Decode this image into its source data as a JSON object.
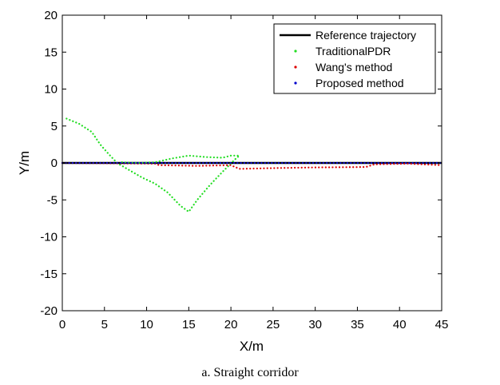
{
  "caption": "a. Straight corridor",
  "chart_data": {
    "type": "line",
    "title": "",
    "xlabel": "X/m",
    "ylabel": "Y/m",
    "xlim": [
      0,
      45
    ],
    "ylim": [
      -20,
      20
    ],
    "xticks": [
      0,
      5,
      10,
      15,
      20,
      25,
      30,
      35,
      40,
      45
    ],
    "yticks": [
      -20,
      -15,
      -10,
      -5,
      0,
      5,
      10,
      15,
      20
    ],
    "grid": false,
    "legend_position": "top-right",
    "series": [
      {
        "name": "Reference trajectory",
        "style": "solid",
        "color": "#000000",
        "points": [
          [
            0,
            0
          ],
          [
            45,
            0
          ]
        ]
      },
      {
        "name": "TraditionalPDR",
        "style": "dotted",
        "color": "#22dd22",
        "points": [
          [
            0.5,
            6
          ],
          [
            2,
            5.3
          ],
          [
            3.5,
            4.2
          ],
          [
            4.5,
            2.5
          ],
          [
            5.5,
            1.2
          ],
          [
            6.5,
            0
          ],
          [
            8,
            -1
          ],
          [
            9.5,
            -2
          ],
          [
            11,
            -2.8
          ],
          [
            12.5,
            -4
          ],
          [
            14,
            -5.8
          ],
          [
            15,
            -6.6
          ],
          [
            16,
            -5
          ],
          [
            17.5,
            -3
          ],
          [
            19,
            -1.2
          ],
          [
            20.5,
            0.5
          ],
          [
            21,
            1
          ],
          [
            20,
            1
          ],
          [
            19,
            0.7
          ],
          [
            17,
            0.8
          ],
          [
            15,
            1
          ],
          [
            13,
            0.6
          ],
          [
            11,
            0.1
          ],
          [
            9,
            0
          ],
          [
            7,
            0.1
          ]
        ]
      },
      {
        "name": "Wang's method",
        "style": "dotted",
        "color": "#dd0000",
        "points": [
          [
            0,
            0
          ],
          [
            11,
            -0.1
          ],
          [
            11.5,
            -0.3
          ],
          [
            16,
            -0.4
          ],
          [
            20,
            -0.3
          ],
          [
            21,
            -0.8
          ],
          [
            25,
            -0.7
          ],
          [
            30,
            -0.6
          ],
          [
            36,
            -0.55
          ],
          [
            37,
            -0.2
          ],
          [
            41,
            -0.1
          ],
          [
            45,
            -0.3
          ]
        ]
      },
      {
        "name": "Proposed method",
        "style": "dotted",
        "color": "#0000cc",
        "points": [
          [
            0,
            0
          ],
          [
            45,
            0
          ]
        ]
      }
    ]
  }
}
